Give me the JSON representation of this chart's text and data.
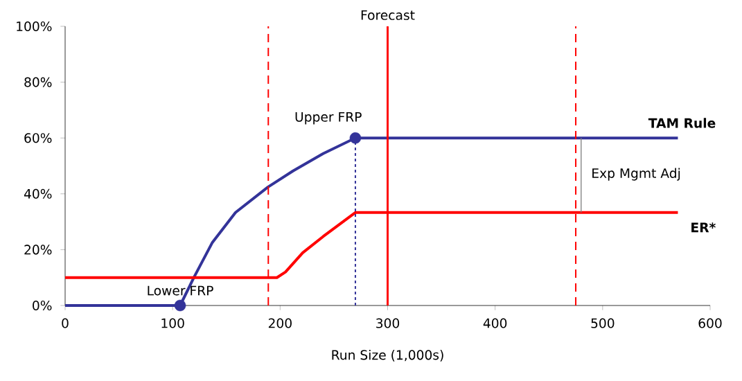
{
  "chart_data": {
    "type": "line",
    "xlabel": "Run Size (1,000s)",
    "xlim": [
      0,
      600
    ],
    "xticks": [
      0,
      100,
      200,
      300,
      400,
      500,
      600
    ],
    "ylim": [
      0,
      100
    ],
    "yticks": [
      {
        "value": 0,
        "label": "0%"
      },
      {
        "value": 20,
        "label": "20%"
      },
      {
        "value": 40,
        "label": "40%"
      },
      {
        "value": 60,
        "label": "60%"
      },
      {
        "value": 80,
        "label": "80%"
      },
      {
        "value": 100,
        "label": "100%"
      }
    ],
    "grid": false,
    "legend": false,
    "marker": "none",
    "line_style": "solid",
    "series": [
      {
        "name": "TAM Rule",
        "color": "#333399",
        "x": [
          0,
          107,
          120,
          137,
          158.5,
          188.6,
          212,
          240,
          270,
          570
        ],
        "values": [
          0,
          0,
          10.2,
          22.6,
          33.3,
          42.4,
          48.2,
          54.4,
          60,
          60
        ]
      },
      {
        "name": "ER*",
        "color": "#ff0000",
        "x": [
          0,
          197,
          205,
          221,
          240,
          270,
          570
        ],
        "values": [
          10,
          10,
          12,
          18.9,
          24.7,
          33.3,
          33.3
        ]
      },
      {
        "type": "line",
        "color": "#333399",
        "line_style": "dotted",
        "x": [
          270,
          270
        ],
        "values": [
          0,
          60
        ]
      },
      {
        "type": "line",
        "color": "#808080",
        "x": [
          480,
          480
        ],
        "values": [
          33.3,
          60
        ]
      },
      {
        "type": "scatter",
        "color": "#333399",
        "marker": "circle",
        "x": [
          107,
          270
        ],
        "values": [
          0,
          60
        ]
      }
    ],
    "ref_lines": [
      {
        "axis": "x",
        "value": 189,
        "color": "#ff0000",
        "line_style": "dashed"
      },
      {
        "axis": "x",
        "value": 300,
        "color": "#ff0000",
        "line_style": "solid",
        "label": "Forecast"
      },
      {
        "axis": "x",
        "value": 475,
        "color": "#ff0000",
        "line_style": "dashed"
      }
    ],
    "annotations": [
      {
        "text": "Lower FRP",
        "x": 107,
        "y": 0
      },
      {
        "text": "Upper FRP",
        "x": 270,
        "y": 60
      },
      {
        "text": "Exp Mgmt Adj",
        "x": 480,
        "y": 47
      }
    ]
  }
}
